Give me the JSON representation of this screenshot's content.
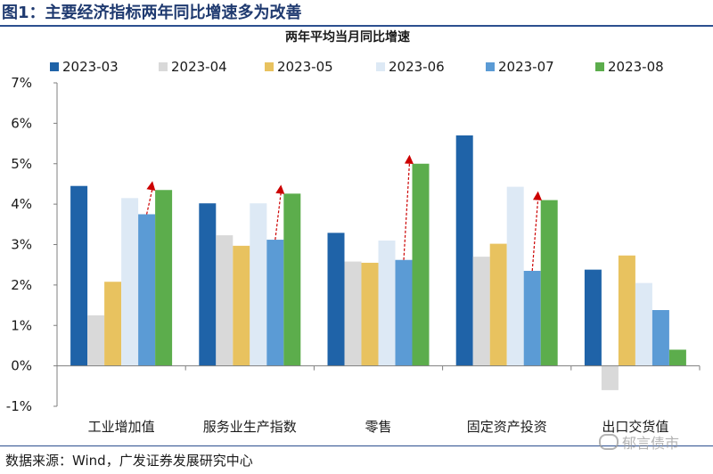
{
  "figure": {
    "title": "图1：主要经济指标两年同比增速多为改善",
    "source": "数据来源：Wind，广发证券发展研究中心",
    "watermark": "郁言债市"
  },
  "chart_data": {
    "type": "bar",
    "title": "两年平均当月同比增速",
    "xlabel": "",
    "ylabel": "",
    "ylim": [
      -1,
      7
    ],
    "yticks": [
      "-1%",
      "0%",
      "1%",
      "2%",
      "3%",
      "4%",
      "5%",
      "6%",
      "7%"
    ],
    "ytick_values": [
      -1,
      0,
      1,
      2,
      3,
      4,
      5,
      6,
      7
    ],
    "grid": false,
    "legend_position": "top",
    "categories": [
      "工业增加值",
      "服务业生产指数",
      "零售",
      "固定资产投资",
      "出口交货值"
    ],
    "series": [
      {
        "name": "2023-03",
        "color": "#1f63a8",
        "values": [
          4.45,
          4.02,
          3.29,
          5.7,
          2.38
        ]
      },
      {
        "name": "2023-04",
        "color": "#d9d9d9",
        "values": [
          1.25,
          3.23,
          2.58,
          2.7,
          -0.6
        ]
      },
      {
        "name": "2023-05",
        "color": "#e8c25f",
        "values": [
          2.08,
          2.97,
          2.55,
          3.02,
          2.73
        ]
      },
      {
        "name": "2023-06",
        "color": "#dde9f5",
        "values": [
          4.15,
          4.02,
          3.1,
          4.43,
          2.05
        ]
      },
      {
        "name": "2023-07",
        "color": "#5b9bd5",
        "values": [
          3.75,
          3.12,
          2.62,
          2.35,
          1.38
        ]
      },
      {
        "name": "2023-08",
        "color": "#5cad4c",
        "values": [
          4.35,
          4.26,
          5.0,
          4.1,
          0.4
        ]
      }
    ],
    "annotations": {
      "type": "arrows",
      "color": "#cc0000",
      "from_series": "2023-07",
      "to_series": "2023-08",
      "categories": [
        "工业增加值",
        "服务业生产指数",
        "零售",
        "固定资产投资"
      ]
    }
  }
}
